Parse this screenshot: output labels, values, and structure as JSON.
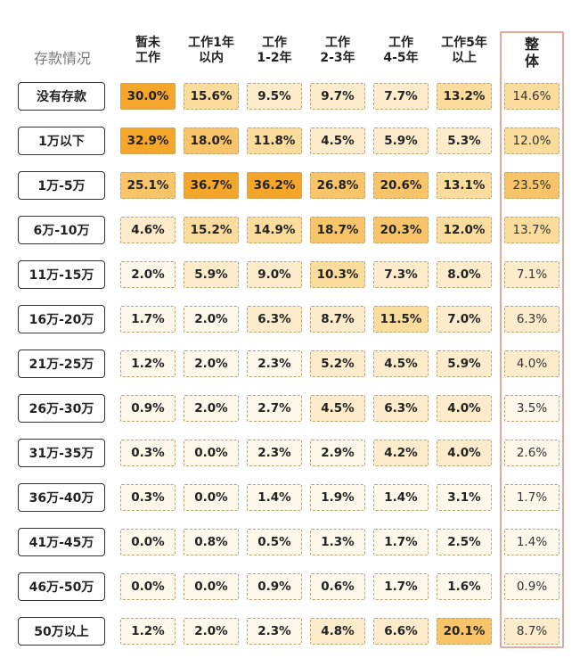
{
  "chart_data": {
    "type": "table",
    "corner_label": "存款情况",
    "columns": [
      {
        "lines": [
          "暂未",
          "工作"
        ]
      },
      {
        "lines": [
          "工作1年",
          "以内"
        ]
      },
      {
        "lines": [
          "工作",
          "1-2年"
        ]
      },
      {
        "lines": [
          "工作",
          "2-3年"
        ]
      },
      {
        "lines": [
          "工作",
          "4-5年"
        ]
      },
      {
        "lines": [
          "工作5年",
          "以上"
        ]
      },
      {
        "lines": [
          "整",
          "体"
        ]
      }
    ],
    "rows": [
      {
        "label": "没有存款",
        "values": [
          30.0,
          15.6,
          9.5,
          9.7,
          7.7,
          13.2,
          14.6
        ]
      },
      {
        "label": "1万以下",
        "values": [
          32.9,
          18.0,
          11.8,
          4.5,
          5.9,
          5.3,
          12.0
        ]
      },
      {
        "label": "1万-5万",
        "values": [
          25.1,
          36.7,
          36.2,
          26.8,
          20.6,
          13.1,
          23.5
        ]
      },
      {
        "label": "6万-10万",
        "values": [
          4.6,
          15.2,
          14.9,
          18.7,
          20.3,
          12.0,
          13.7
        ]
      },
      {
        "label": "11万-15万",
        "values": [
          2.0,
          5.9,
          9.0,
          10.3,
          7.3,
          8.0,
          7.1
        ]
      },
      {
        "label": "16万-20万",
        "values": [
          1.7,
          2.0,
          6.3,
          8.7,
          11.5,
          7.0,
          6.3
        ]
      },
      {
        "label": "21万-25万",
        "values": [
          1.2,
          2.0,
          2.3,
          5.2,
          4.5,
          5.9,
          4.0
        ]
      },
      {
        "label": "26万-30万",
        "values": [
          0.9,
          2.0,
          2.7,
          4.5,
          6.3,
          4.0,
          3.5
        ]
      },
      {
        "label": "31万-35万",
        "values": [
          0.3,
          0.0,
          2.3,
          2.9,
          4.2,
          4.0,
          2.6
        ]
      },
      {
        "label": "36万-40万",
        "values": [
          0.3,
          0.0,
          1.4,
          1.9,
          1.4,
          3.1,
          1.7
        ]
      },
      {
        "label": "41万-45万",
        "values": [
          0.0,
          0.8,
          0.5,
          1.3,
          1.7,
          2.5,
          1.4
        ]
      },
      {
        "label": "46万-50万",
        "values": [
          0.0,
          0.0,
          0.9,
          0.6,
          1.7,
          1.6,
          0.9
        ]
      },
      {
        "label": "50万以上",
        "values": [
          1.2,
          2.0,
          2.3,
          4.8,
          6.6,
          20.1,
          8.7
        ]
      }
    ],
    "value_suffix": "%",
    "highlighted_column": "整体",
    "colors": {
      "max": "#f4a62a",
      "high": "#f7c46a",
      "mid": "#fadc9d",
      "low": "#fceccc",
      "min": "#fef8ea",
      "highlight_frame": "#e4a99a"
    }
  }
}
